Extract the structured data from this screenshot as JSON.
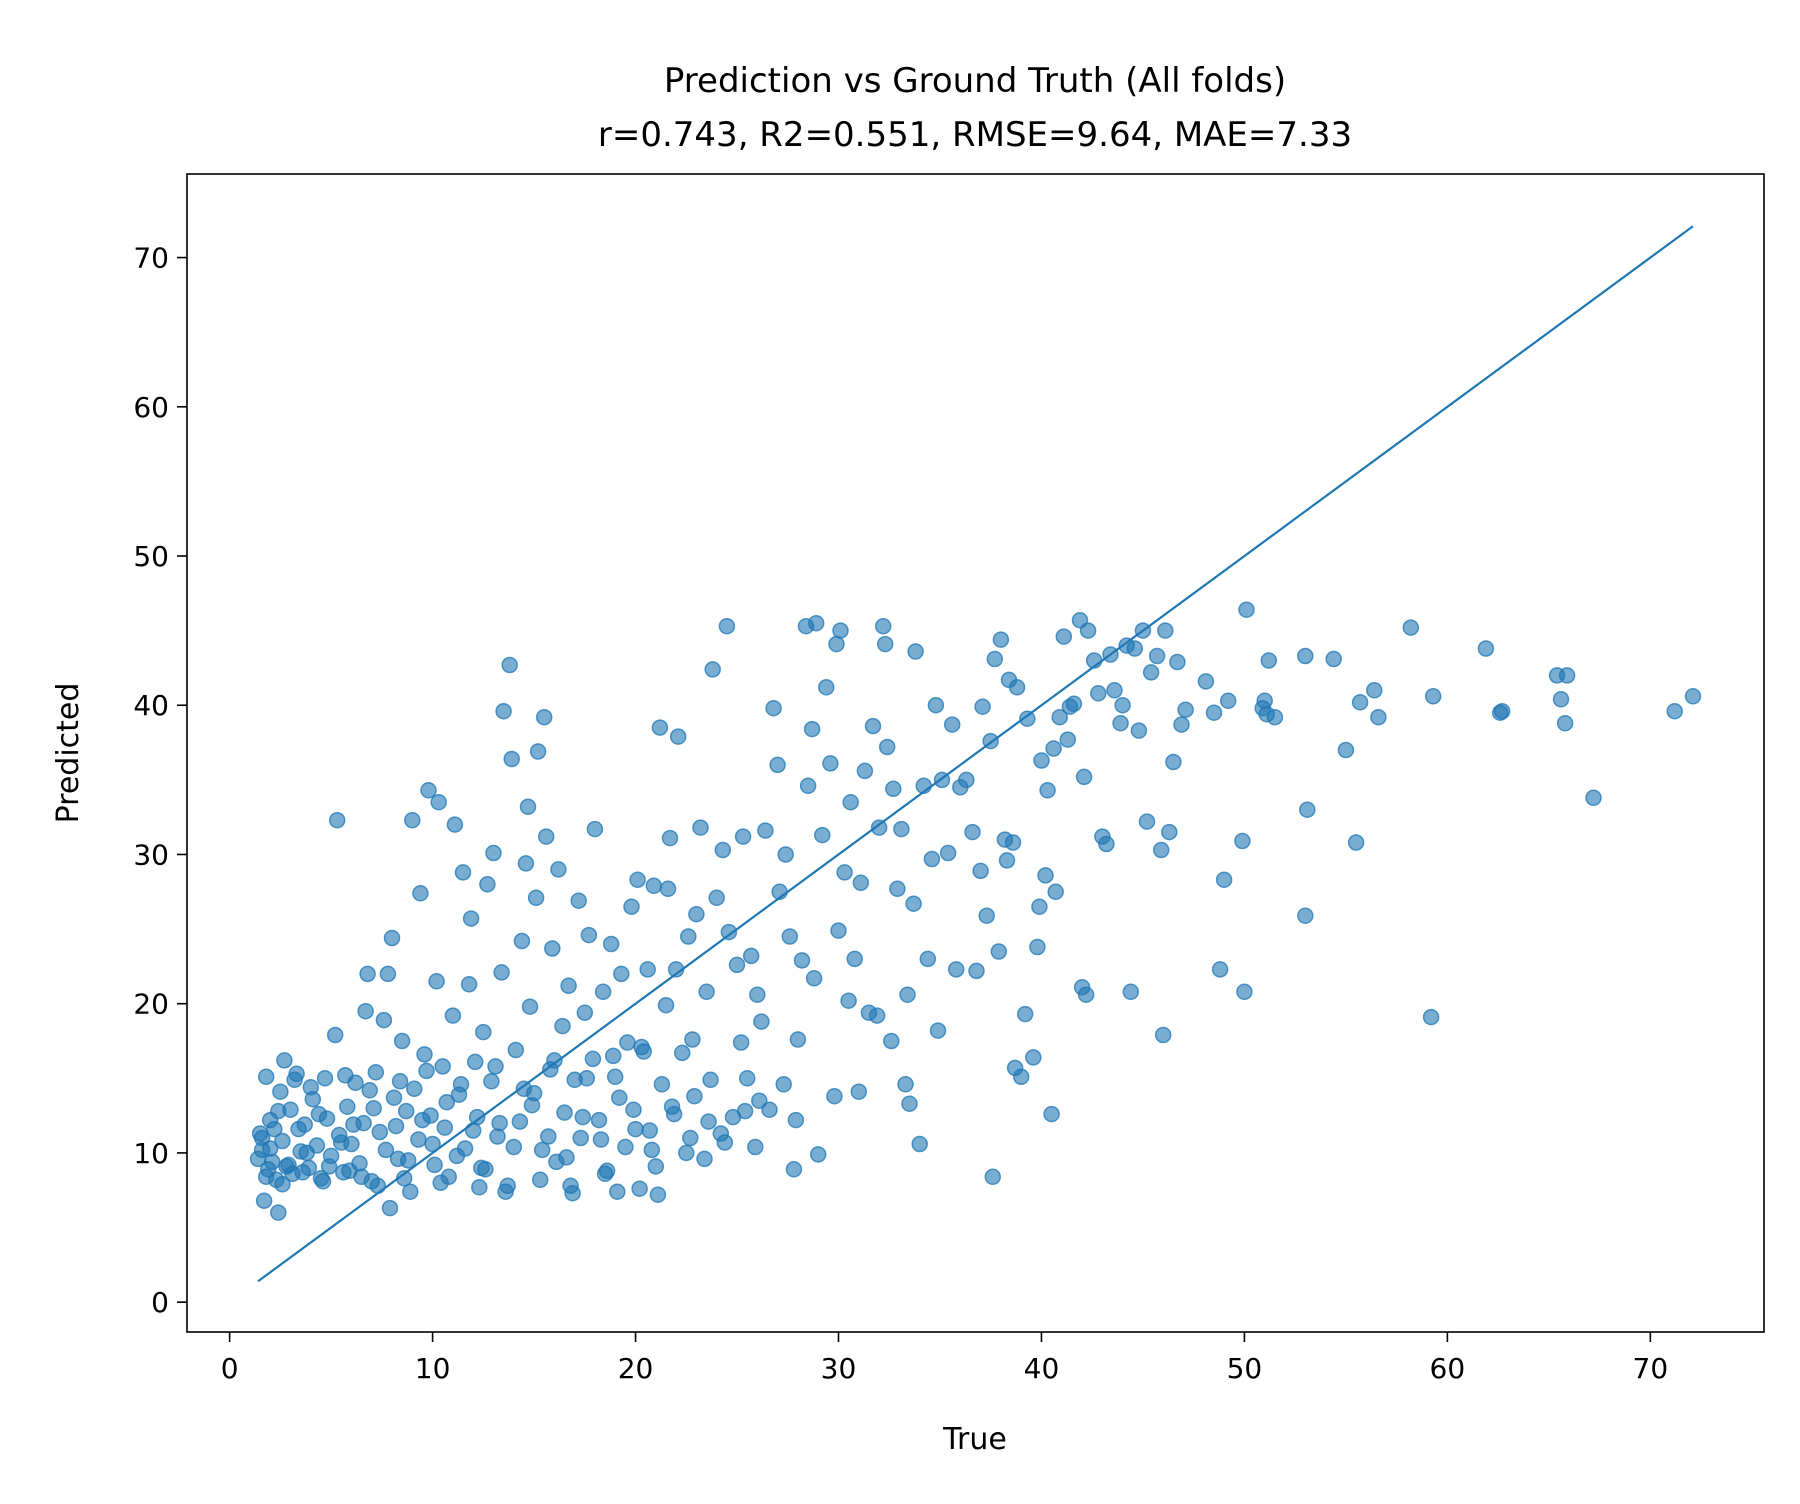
{
  "chart_data": {
    "type": "scatter",
    "title": "Prediction vs Ground Truth (All folds)",
    "subtitle": "r=0.743, R2=0.551, RMSE=9.64, MAE=7.33",
    "xlabel": "True",
    "ylabel": "Predicted",
    "xlim": [
      -2.1,
      75.6
    ],
    "ylim": [
      -2.0,
      75.6
    ],
    "xticks": [
      0,
      10,
      20,
      30,
      40,
      50,
      60,
      70
    ],
    "yticks": [
      0,
      10,
      20,
      30,
      40,
      50,
      60,
      70
    ],
    "grid": false,
    "legend": "none",
    "colors": {
      "points": "#1f77b4",
      "line": "#1f77b4",
      "axes": "#000000"
    },
    "identity_line": {
      "x": [
        1.4,
        72.1
      ],
      "y": [
        1.4,
        72.1
      ]
    },
    "points": [
      [
        1.4,
        9.6
      ],
      [
        1.5,
        11.3
      ],
      [
        1.6,
        10.2
      ],
      [
        1.7,
        6.8
      ],
      [
        1.8,
        15.1
      ],
      [
        1.9,
        8.9
      ],
      [
        2.0,
        12.2
      ],
      [
        2.1,
        9.4
      ],
      [
        2.2,
        11.6
      ],
      [
        2.3,
        8.2
      ],
      [
        2.4,
        6.0
      ],
      [
        2.5,
        14.1
      ],
      [
        2.6,
        10.8
      ],
      [
        2.7,
        16.2
      ],
      [
        2.8,
        9.1
      ],
      [
        3.0,
        12.9
      ],
      [
        3.1,
        8.6
      ],
      [
        3.3,
        15.3
      ],
      [
        3.5,
        10.1
      ],
      [
        3.7,
        11.9
      ],
      [
        3.9,
        9.0
      ],
      [
        4.1,
        13.6
      ],
      [
        4.3,
        10.5
      ],
      [
        4.5,
        8.3
      ],
      [
        4.7,
        15.0
      ],
      [
        4.8,
        12.3
      ],
      [
        5.0,
        9.8
      ],
      [
        5.2,
        17.9
      ],
      [
        5.3,
        32.3
      ],
      [
        5.4,
        11.2
      ],
      [
        5.6,
        8.7
      ],
      [
        5.8,
        13.1
      ],
      [
        6.0,
        10.6
      ],
      [
        6.2,
        14.7
      ],
      [
        6.4,
        9.3
      ],
      [
        6.6,
        12.0
      ],
      [
        6.7,
        19.5
      ],
      [
        6.8,
        22.0
      ],
      [
        7.0,
        8.1
      ],
      [
        7.2,
        15.4
      ],
      [
        7.4,
        11.4
      ],
      [
        7.6,
        18.9
      ],
      [
        7.8,
        22.0
      ],
      [
        7.9,
        6.3
      ],
      [
        8.0,
        24.4
      ],
      [
        8.1,
        13.7
      ],
      [
        8.3,
        9.6
      ],
      [
        8.5,
        17.5
      ],
      [
        8.7,
        12.8
      ],
      [
        8.9,
        7.4
      ],
      [
        9.0,
        32.3
      ],
      [
        9.1,
        14.3
      ],
      [
        9.3,
        10.9
      ],
      [
        9.4,
        27.4
      ],
      [
        9.6,
        16.6
      ],
      [
        9.8,
        34.3
      ],
      [
        9.9,
        12.5
      ],
      [
        10.1,
        9.2
      ],
      [
        10.2,
        21.5
      ],
      [
        10.3,
        33.5
      ],
      [
        10.5,
        15.8
      ],
      [
        10.6,
        11.7
      ],
      [
        10.8,
        8.4
      ],
      [
        11.0,
        19.2
      ],
      [
        11.1,
        32.0
      ],
      [
        11.3,
        13.9
      ],
      [
        11.5,
        28.8
      ],
      [
        11.6,
        10.3
      ],
      [
        11.8,
        21.3
      ],
      [
        11.9,
        25.7
      ],
      [
        12.1,
        16.1
      ],
      [
        12.2,
        12.4
      ],
      [
        12.4,
        9.0
      ],
      [
        12.5,
        18.1
      ],
      [
        12.7,
        28.0
      ],
      [
        12.9,
        14.8
      ],
      [
        13.0,
        30.1
      ],
      [
        13.2,
        11.1
      ],
      [
        13.4,
        22.1
      ],
      [
        13.5,
        39.6
      ],
      [
        13.7,
        7.8
      ],
      [
        13.8,
        42.7
      ],
      [
        13.9,
        36.4
      ],
      [
        14.1,
        16.9
      ],
      [
        14.3,
        12.1
      ],
      [
        14.4,
        24.2
      ],
      [
        14.6,
        29.4
      ],
      [
        14.7,
        33.2
      ],
      [
        14.8,
        19.8
      ],
      [
        15.0,
        14.0
      ],
      [
        15.1,
        27.1
      ],
      [
        15.2,
        36.9
      ],
      [
        15.4,
        10.2
      ],
      [
        15.5,
        39.2
      ],
      [
        15.6,
        31.2
      ],
      [
        15.8,
        15.6
      ],
      [
        15.9,
        23.7
      ],
      [
        16.1,
        9.4
      ],
      [
        16.2,
        29.0
      ],
      [
        16.4,
        18.5
      ],
      [
        16.5,
        12.7
      ],
      [
        16.7,
        21.2
      ],
      [
        16.9,
        7.3
      ],
      [
        17.0,
        14.9
      ],
      [
        17.2,
        26.9
      ],
      [
        17.3,
        11.0
      ],
      [
        17.5,
        19.4
      ],
      [
        17.7,
        24.6
      ],
      [
        17.9,
        16.3
      ],
      [
        18.0,
        31.7
      ],
      [
        18.2,
        12.2
      ],
      [
        18.4,
        20.8
      ],
      [
        18.6,
        8.8
      ],
      [
        18.8,
        24.0
      ],
      [
        19.0,
        15.1
      ],
      [
        19.1,
        7.4
      ],
      [
        19.3,
        22.0
      ],
      [
        19.5,
        10.4
      ],
      [
        19.6,
        17.4
      ],
      [
        19.8,
        26.5
      ],
      [
        19.9,
        12.9
      ],
      [
        20.1,
        28.3
      ],
      [
        20.2,
        7.6
      ],
      [
        20.4,
        16.8
      ],
      [
        20.6,
        22.3
      ],
      [
        20.7,
        11.5
      ],
      [
        20.9,
        27.9
      ],
      [
        21.0,
        9.1
      ],
      [
        21.2,
        38.5
      ],
      [
        21.3,
        14.6
      ],
      [
        21.5,
        19.9
      ],
      [
        21.6,
        27.7
      ],
      [
        21.7,
        31.1
      ],
      [
        21.9,
        12.6
      ],
      [
        22.0,
        22.3
      ],
      [
        22.1,
        37.9
      ],
      [
        22.3,
        16.7
      ],
      [
        22.5,
        10.0
      ],
      [
        22.6,
        24.5
      ],
      [
        22.8,
        17.6
      ],
      [
        22.9,
        13.8
      ],
      [
        23.0,
        26.0
      ],
      [
        23.2,
        31.8
      ],
      [
        23.4,
        9.6
      ],
      [
        23.5,
        20.8
      ],
      [
        23.7,
        14.9
      ],
      [
        23.8,
        42.4
      ],
      [
        24.0,
        27.1
      ],
      [
        24.2,
        11.3
      ],
      [
        24.3,
        30.3
      ],
      [
        24.5,
        45.3
      ],
      [
        24.6,
        24.8
      ],
      [
        24.8,
        12.4
      ],
      [
        25.0,
        22.6
      ],
      [
        25.2,
        17.4
      ],
      [
        25.3,
        31.2
      ],
      [
        25.5,
        15.0
      ],
      [
        25.7,
        23.2
      ],
      [
        25.9,
        10.4
      ],
      [
        26.0,
        20.6
      ],
      [
        26.2,
        18.8
      ],
      [
        26.4,
        31.6
      ],
      [
        26.6,
        12.9
      ],
      [
        26.8,
        39.8
      ],
      [
        27.0,
        36.0
      ],
      [
        27.1,
        27.5
      ],
      [
        27.3,
        14.6
      ],
      [
        27.4,
        30.0
      ],
      [
        27.6,
        24.5
      ],
      [
        27.8,
        8.9
      ],
      [
        27.9,
        12.2
      ],
      [
        28.0,
        17.6
      ],
      [
        28.2,
        22.9
      ],
      [
        28.4,
        45.3
      ],
      [
        28.5,
        34.6
      ],
      [
        28.7,
        38.4
      ],
      [
        28.8,
        21.7
      ],
      [
        28.9,
        45.5
      ],
      [
        29.0,
        9.9
      ],
      [
        29.2,
        31.3
      ],
      [
        29.4,
        41.2
      ],
      [
        29.6,
        36.1
      ],
      [
        29.8,
        13.8
      ],
      [
        29.9,
        44.1
      ],
      [
        30.0,
        24.9
      ],
      [
        30.1,
        45.0
      ],
      [
        30.3,
        28.8
      ],
      [
        30.5,
        20.2
      ],
      [
        30.6,
        33.5
      ],
      [
        30.8,
        23.0
      ],
      [
        31.0,
        14.1
      ],
      [
        31.1,
        28.1
      ],
      [
        31.3,
        35.6
      ],
      [
        31.5,
        19.4
      ],
      [
        31.7,
        38.6
      ],
      [
        31.9,
        19.2
      ],
      [
        32.0,
        31.8
      ],
      [
        32.2,
        45.3
      ],
      [
        32.3,
        44.1
      ],
      [
        32.4,
        37.2
      ],
      [
        32.6,
        17.5
      ],
      [
        32.7,
        34.4
      ],
      [
        32.9,
        27.7
      ],
      [
        33.1,
        31.7
      ],
      [
        33.3,
        14.6
      ],
      [
        33.4,
        20.6
      ],
      [
        33.5,
        13.3
      ],
      [
        33.7,
        26.7
      ],
      [
        33.8,
        43.6
      ],
      [
        34.0,
        10.6
      ],
      [
        34.2,
        34.6
      ],
      [
        34.4,
        23.0
      ],
      [
        34.6,
        29.7
      ],
      [
        34.8,
        40.0
      ],
      [
        34.9,
        18.2
      ],
      [
        35.1,
        35.0
      ],
      [
        35.4,
        30.1
      ],
      [
        35.6,
        38.7
      ],
      [
        35.8,
        22.3
      ],
      [
        36.0,
        34.5
      ],
      [
        36.3,
        35.0
      ],
      [
        36.6,
        31.5
      ],
      [
        36.8,
        22.2
      ],
      [
        37.0,
        28.9
      ],
      [
        37.1,
        39.9
      ],
      [
        37.3,
        25.9
      ],
      [
        37.5,
        37.6
      ],
      [
        37.6,
        8.4
      ],
      [
        37.7,
        43.1
      ],
      [
        37.9,
        23.5
      ],
      [
        38.0,
        44.4
      ],
      [
        38.2,
        31.0
      ],
      [
        38.3,
        29.6
      ],
      [
        38.4,
        41.7
      ],
      [
        38.6,
        30.8
      ],
      [
        38.7,
        15.7
      ],
      [
        38.8,
        41.2
      ],
      [
        39.0,
        15.1
      ],
      [
        39.2,
        19.3
      ],
      [
        39.3,
        39.1
      ],
      [
        39.6,
        16.4
      ],
      [
        39.8,
        23.8
      ],
      [
        39.9,
        26.5
      ],
      [
        40.0,
        36.3
      ],
      [
        40.2,
        28.6
      ],
      [
        40.3,
        34.3
      ],
      [
        40.5,
        12.6
      ],
      [
        40.6,
        37.1
      ],
      [
        40.7,
        27.5
      ],
      [
        40.9,
        39.2
      ],
      [
        41.1,
        44.6
      ],
      [
        41.3,
        37.7
      ],
      [
        41.4,
        39.9
      ],
      [
        41.6,
        40.1
      ],
      [
        41.9,
        45.7
      ],
      [
        42.0,
        21.1
      ],
      [
        42.1,
        35.2
      ],
      [
        42.2,
        20.6
      ],
      [
        42.3,
        45.0
      ],
      [
        42.6,
        43.0
      ],
      [
        42.8,
        40.8
      ],
      [
        43.0,
        31.2
      ],
      [
        43.2,
        30.7
      ],
      [
        43.4,
        43.4
      ],
      [
        43.6,
        41.0
      ],
      [
        43.9,
        38.8
      ],
      [
        44.0,
        40.0
      ],
      [
        44.2,
        44.0
      ],
      [
        44.4,
        20.8
      ],
      [
        44.6,
        43.8
      ],
      [
        44.8,
        38.3
      ],
      [
        45.0,
        45.0
      ],
      [
        45.2,
        32.2
      ],
      [
        45.4,
        42.2
      ],
      [
        45.7,
        43.3
      ],
      [
        45.9,
        30.3
      ],
      [
        46.0,
        17.9
      ],
      [
        46.1,
        45.0
      ],
      [
        46.3,
        31.5
      ],
      [
        46.5,
        36.2
      ],
      [
        46.7,
        42.9
      ],
      [
        46.9,
        38.7
      ],
      [
        47.1,
        39.7
      ],
      [
        48.1,
        41.6
      ],
      [
        48.5,
        39.5
      ],
      [
        48.8,
        22.3
      ],
      [
        49.0,
        28.3
      ],
      [
        49.2,
        40.3
      ],
      [
        49.9,
        30.9
      ],
      [
        50.0,
        20.8
      ],
      [
        50.1,
        46.4
      ],
      [
        50.9,
        39.8
      ],
      [
        51.0,
        40.3
      ],
      [
        51.1,
        39.4
      ],
      [
        51.2,
        43.0
      ],
      [
        51.5,
        39.2
      ],
      [
        53.0,
        43.3
      ],
      [
        53.1,
        33.0
      ],
      [
        53.0,
        25.9
      ],
      [
        54.4,
        43.1
      ],
      [
        55.0,
        37.0
      ],
      [
        55.5,
        30.8
      ],
      [
        55.7,
        40.2
      ],
      [
        56.4,
        41.0
      ],
      [
        56.6,
        39.2
      ],
      [
        58.2,
        45.2
      ],
      [
        59.2,
        19.1
      ],
      [
        59.3,
        40.6
      ],
      [
        61.9,
        43.8
      ],
      [
        62.6,
        39.5
      ],
      [
        62.7,
        39.6
      ],
      [
        65.4,
        42.0
      ],
      [
        65.6,
        40.4
      ],
      [
        65.9,
        42.0
      ],
      [
        65.8,
        38.8
      ],
      [
        67.2,
        33.8
      ],
      [
        71.2,
        39.6
      ],
      [
        72.1,
        40.6
      ],
      [
        1.6,
        11.0
      ],
      [
        2.0,
        10.3
      ],
      [
        2.4,
        12.8
      ],
      [
        2.9,
        9.2
      ],
      [
        3.4,
        11.6
      ],
      [
        3.8,
        10.0
      ],
      [
        4.4,
        12.6
      ],
      [
        4.9,
        9.1
      ],
      [
        5.5,
        10.7
      ],
      [
        6.1,
        11.9
      ],
      [
        6.5,
        8.4
      ],
      [
        7.1,
        13.0
      ],
      [
        7.7,
        10.2
      ],
      [
        8.2,
        11.8
      ],
      [
        8.8,
        9.5
      ],
      [
        9.5,
        12.2
      ],
      [
        10.0,
        10.6
      ],
      [
        10.7,
        13.4
      ],
      [
        11.2,
        9.8
      ],
      [
        12.0,
        11.5
      ],
      [
        12.6,
        8.9
      ],
      [
        13.3,
        12.0
      ],
      [
        14.0,
        10.4
      ],
      [
        14.9,
        13.2
      ],
      [
        15.7,
        11.1
      ],
      [
        16.6,
        9.7
      ],
      [
        17.4,
        12.4
      ],
      [
        18.3,
        10.9
      ],
      [
        19.2,
        13.7
      ],
      [
        20.0,
        11.6
      ],
      [
        20.8,
        10.2
      ],
      [
        21.8,
        13.1
      ],
      [
        22.7,
        11.0
      ],
      [
        23.6,
        12.1
      ],
      [
        24.4,
        10.7
      ],
      [
        25.4,
        12.8
      ],
      [
        26.1,
        13.5
      ],
      [
        3.2,
        14.9
      ],
      [
        4.0,
        14.4
      ],
      [
        5.7,
        15.2
      ],
      [
        6.9,
        14.2
      ],
      [
        8.4,
        14.8
      ],
      [
        9.7,
        15.5
      ],
      [
        11.4,
        14.6
      ],
      [
        13.1,
        15.8
      ],
      [
        14.5,
        14.3
      ],
      [
        16.0,
        16.2
      ],
      [
        17.6,
        15.0
      ],
      [
        18.9,
        16.5
      ],
      [
        20.3,
        17.1
      ],
      [
        1.8,
        8.4
      ],
      [
        2.6,
        7.9
      ],
      [
        3.6,
        8.7
      ],
      [
        4.6,
        8.1
      ],
      [
        5.9,
        8.8
      ],
      [
        7.3,
        7.8
      ],
      [
        8.6,
        8.3
      ],
      [
        10.4,
        8.0
      ],
      [
        12.3,
        7.7
      ],
      [
        13.6,
        7.4
      ],
      [
        15.3,
        8.2
      ],
      [
        16.8,
        7.8
      ],
      [
        18.5,
        8.6
      ],
      [
        21.1,
        7.2
      ]
    ]
  }
}
